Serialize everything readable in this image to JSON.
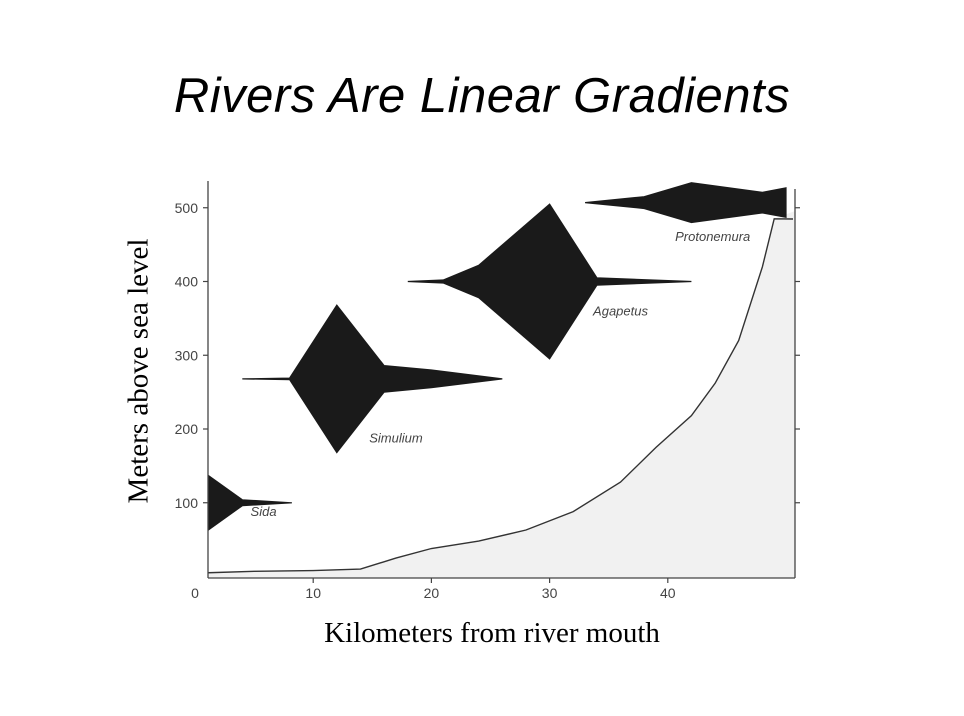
{
  "slide": {
    "title": "Rivers Are Linear Gradients"
  },
  "chart_data": {
    "type": "area",
    "title": "",
    "xlabel": "Kilometers from river mouth",
    "ylabel": "Meters above sea level",
    "xlim": [
      0,
      50
    ],
    "ylim": [
      -5,
      530
    ],
    "x_ticks": [
      0,
      10,
      20,
      30,
      40
    ],
    "y_ticks": [
      100,
      200,
      300,
      400,
      500
    ],
    "grid": false,
    "profile": {
      "x": [
        1,
        5,
        10,
        14,
        17,
        20,
        24,
        28,
        32,
        36,
        39,
        42,
        44,
        46,
        48,
        49
      ],
      "y": [
        5,
        7,
        8,
        10,
        25,
        38,
        48,
        63,
        88,
        128,
        175,
        218,
        262,
        320,
        420,
        485
      ]
    },
    "species": [
      {
        "name": "Sida",
        "label_x": 5.8,
        "label_y": 82,
        "axis_y": 100,
        "x": [
          0,
          4,
          8.2
        ],
        "half_width": [
          50,
          4,
          0
        ]
      },
      {
        "name": "Simulium",
        "label_x": 17,
        "label_y": 182,
        "axis_y": 268,
        "x": [
          4,
          8,
          12,
          16,
          20,
          26
        ],
        "half_width": [
          0,
          1,
          100,
          18,
          12,
          0
        ]
      },
      {
        "name": "Agapetus",
        "label_x": 36,
        "label_y": 354,
        "axis_y": 400,
        "x": [
          18,
          21,
          24,
          30,
          34,
          42
        ],
        "half_width": [
          0,
          2,
          22,
          105,
          5,
          0
        ]
      },
      {
        "name": "Protonemura",
        "label_x": 43.8,
        "label_y": 455,
        "axis_y": 507,
        "x": [
          33,
          38,
          42,
          48,
          50
        ],
        "half_width": [
          0,
          8,
          27,
          14,
          20
        ]
      }
    ]
  }
}
